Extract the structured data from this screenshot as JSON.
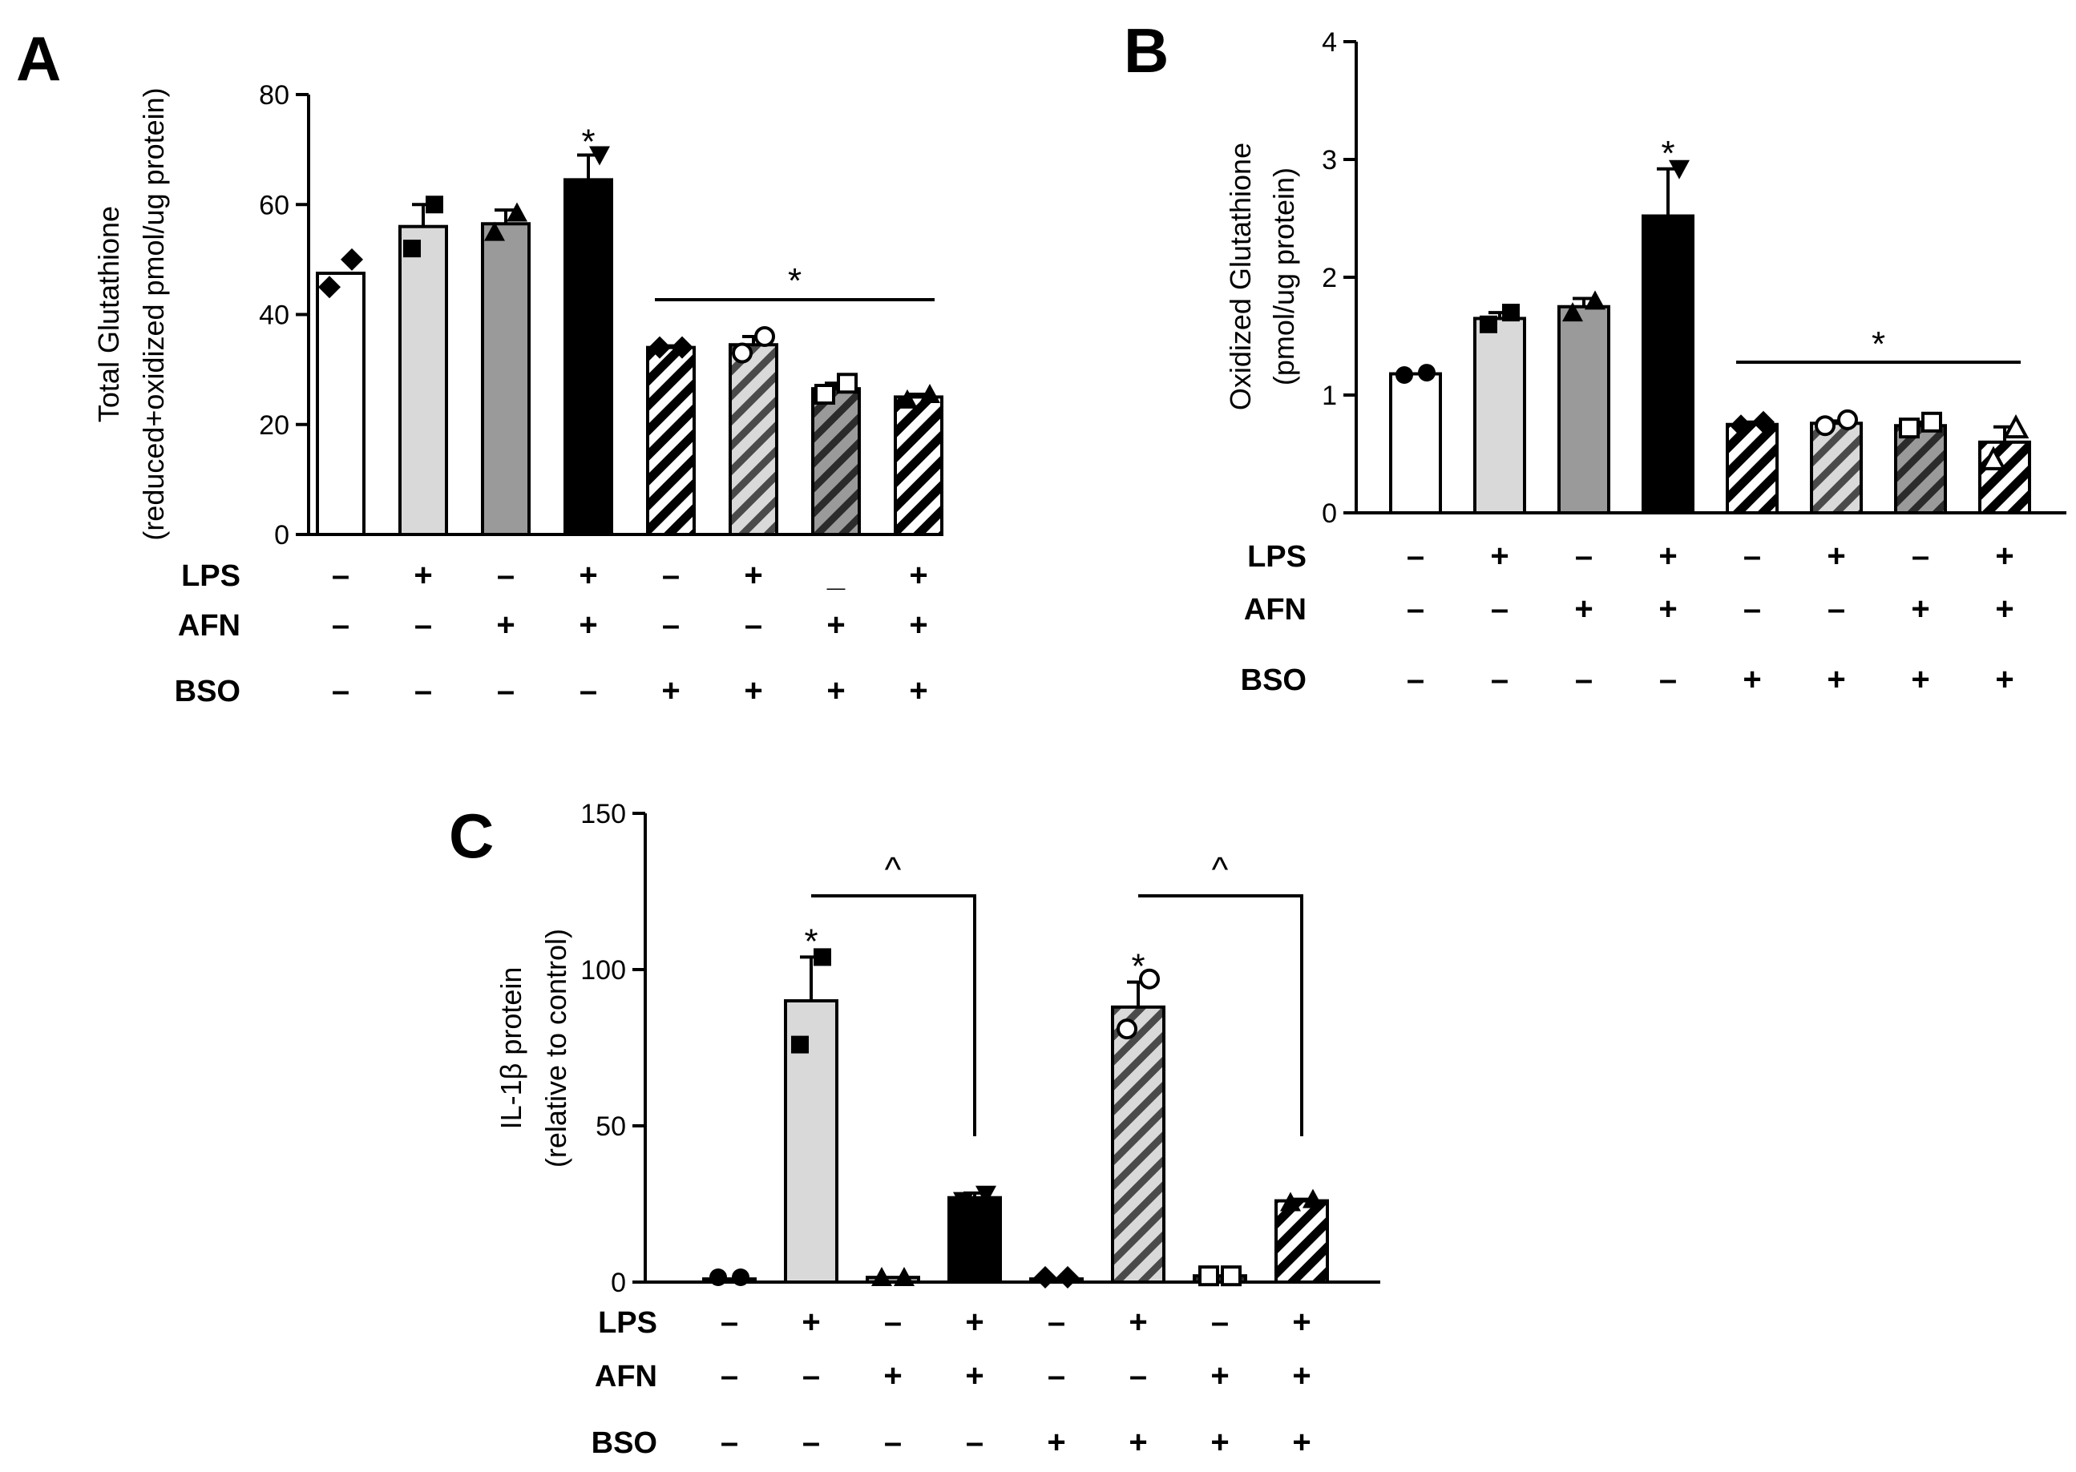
{
  "chart_data": [
    {
      "type": "bar",
      "panel": "A",
      "ylabel_line1": "Total Glutathione",
      "ylabel_line2": "(reduced+oxidized pmol/ug protein)",
      "ylim": [
        0,
        80
      ],
      "yticks": [
        0,
        20,
        40,
        60,
        80
      ],
      "values": [
        47.5,
        56,
        56.5,
        64.5,
        34,
        34.5,
        26.5,
        25
      ],
      "errors": [
        0,
        4,
        2.5,
        4.5,
        0.3,
        1.5,
        1,
        0.5
      ],
      "points": [
        [
          45,
          50
        ],
        [
          52,
          60
        ],
        [
          55,
          58.5
        ],
        [
          60,
          69
        ],
        [
          34,
          34
        ],
        [
          33,
          36
        ],
        [
          25.5,
          27.5
        ],
        [
          24.5,
          25.5
        ]
      ],
      "styles": [
        "white",
        "lightgray",
        "darkgray",
        "black",
        "white-hatch",
        "lightgray-hatch",
        "darkgray-hatch",
        "white-hatch"
      ],
      "markers": [
        "diamond",
        "square",
        "triangle",
        "triangle-down",
        "diamond",
        "circle-open",
        "square-open",
        "triangle"
      ],
      "treatment_rows": [
        {
          "name": "LPS",
          "signs": [
            "–",
            "+",
            "–",
            "+",
            "–",
            "+",
            "_",
            "+"
          ]
        },
        {
          "name": "AFN",
          "signs": [
            "–",
            "–",
            "+",
            "+",
            "–",
            "–",
            "+",
            "+"
          ]
        },
        {
          "name": "BSO",
          "signs": [
            "–",
            "–",
            "–",
            "–",
            "+",
            "+",
            "+",
            "+"
          ]
        }
      ],
      "annotations": [
        {
          "text": "*",
          "type": "bar",
          "bar": 3
        },
        {
          "text": "*",
          "type": "line",
          "from": 4,
          "to": 7
        }
      ]
    },
    {
      "type": "bar",
      "panel": "B",
      "ylabel_line1": "Oxidized  Glutathione",
      "ylabel_line2": "(pmol/ug protein)",
      "ylim": [
        0,
        4
      ],
      "yticks": [
        0,
        1,
        2,
        3,
        4
      ],
      "values": [
        1.18,
        1.65,
        1.75,
        2.52,
        0.75,
        0.76,
        0.74,
        0.6
      ],
      "errors": [
        0,
        0.05,
        0.07,
        0.4,
        0.02,
        0.02,
        0.03,
        0.13
      ],
      "points": [
        [
          1.17,
          1.19
        ],
        [
          1.6,
          1.7
        ],
        [
          1.7,
          1.8
        ],
        [
          2.1,
          2.92
        ],
        [
          0.74,
          0.77
        ],
        [
          0.74,
          0.79
        ],
        [
          0.72,
          0.77
        ],
        [
          0.45,
          0.72
        ]
      ],
      "styles": [
        "white",
        "lightgray",
        "darkgray",
        "black",
        "white-hatch",
        "lightgray-hatch",
        "darkgray-hatch",
        "white-hatch"
      ],
      "markers": [
        "circle",
        "square",
        "triangle",
        "triangle-down",
        "diamond",
        "circle-open",
        "square-open",
        "triangle-open"
      ],
      "treatment_rows": [
        {
          "name": "LPS",
          "signs": [
            "–",
            "+",
            "–",
            "+",
            "–",
            "+",
            "–",
            "+"
          ]
        },
        {
          "name": "AFN",
          "signs": [
            "–",
            "–",
            "+",
            "+",
            "–",
            "–",
            "+",
            "+"
          ]
        },
        {
          "name": "BSO",
          "signs": [
            "–",
            "–",
            "–",
            "–",
            "+",
            "+",
            "+",
            "+"
          ]
        }
      ],
      "annotations": [
        {
          "text": "*",
          "type": "bar",
          "bar": 3
        },
        {
          "text": "*",
          "type": "line",
          "from": 4,
          "to": 7
        }
      ]
    },
    {
      "type": "bar",
      "panel": "C",
      "ylabel_line1": "IL-1β protein",
      "ylabel_line2": "(relative to control)",
      "ylim": [
        0,
        150
      ],
      "yticks": [
        0,
        50,
        100,
        150
      ],
      "values": [
        1,
        90,
        1.5,
        27,
        1,
        88,
        2,
        26
      ],
      "errors": [
        0,
        14,
        0,
        1.5,
        0,
        8,
        0,
        0.5
      ],
      "points": [
        [
          1,
          1
        ],
        [
          76,
          104
        ],
        [
          1.5,
          1.5
        ],
        [
          26,
          28
        ],
        [
          1,
          1
        ],
        [
          81,
          97
        ],
        [
          2,
          2
        ],
        [
          25.5,
          26.5
        ]
      ],
      "styles": [
        "white",
        "lightgray",
        "darkgray",
        "black",
        "white-hatch",
        "lightgray-hatch",
        "darkgray-hatch",
        "white-hatch"
      ],
      "markers": [
        "circle",
        "square",
        "triangle",
        "triangle-down",
        "diamond",
        "circle-open",
        "square-open",
        "triangle"
      ],
      "treatment_rows": [
        {
          "name": "LPS",
          "signs": [
            "–",
            "+",
            "–",
            "+",
            "–",
            "+",
            "–",
            "+"
          ]
        },
        {
          "name": "AFN",
          "signs": [
            "–",
            "–",
            "+",
            "+",
            "–",
            "–",
            "+",
            "+"
          ]
        },
        {
          "name": "BSO",
          "signs": [
            "–",
            "–",
            "–",
            "–",
            "+",
            "+",
            "+",
            "+"
          ]
        }
      ],
      "annotations": [
        {
          "text": "*",
          "type": "bar",
          "bar": 1
        },
        {
          "text": "*",
          "type": "bar",
          "bar": 5
        },
        {
          "text": "^",
          "type": "bracket",
          "from": 1,
          "to": 3
        },
        {
          "text": "^",
          "type": "bracket",
          "from": 5,
          "to": 7
        }
      ]
    }
  ]
}
